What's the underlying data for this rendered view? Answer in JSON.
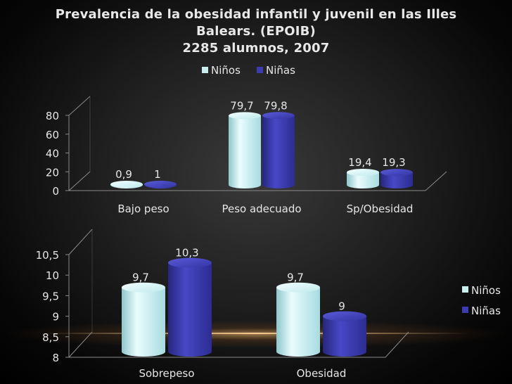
{
  "title_lines": [
    "Prevalencia de la obesidad infantil y juvenil en las Illes",
    "Balears. (EPOIB)",
    "2285 alumnos, 2007"
  ],
  "colors": {
    "ninos": "#c9eef0",
    "ninas": "#3c3cb0",
    "text": "#e6e6e6",
    "grid": "#8a8a8a"
  },
  "chart_data": [
    {
      "type": "bar",
      "categories": [
        "Bajo peso",
        "Peso adecuado",
        "Sp/Obesidad"
      ],
      "series": [
        {
          "name": "Niños",
          "values": [
            0.9,
            79.7,
            19.4
          ],
          "labels": [
            "0,9",
            "79,7",
            "19,4"
          ]
        },
        {
          "name": "Niñas",
          "values": [
            1,
            79.8,
            19.3
          ],
          "labels": [
            "1",
            "79,8",
            "19,3"
          ]
        }
      ],
      "yticks": [
        "0",
        "20",
        "40",
        "60",
        "80"
      ],
      "ylim": [
        0,
        80
      ],
      "legend": "top",
      "grid": false
    },
    {
      "type": "bar",
      "categories": [
        "Sobrepeso",
        "Obesidad"
      ],
      "series": [
        {
          "name": "Niños",
          "values": [
            9.7,
            9.7
          ],
          "labels": [
            "9,7",
            "9,7"
          ]
        },
        {
          "name": "Niñas",
          "values": [
            10.3,
            9
          ],
          "labels": [
            "10,3",
            "9"
          ]
        }
      ],
      "yticks": [
        "8",
        "8,5",
        "9",
        "9,5",
        "10",
        "10,5"
      ],
      "ylim": [
        8,
        10.5
      ],
      "legend": "right",
      "grid": false
    }
  ]
}
